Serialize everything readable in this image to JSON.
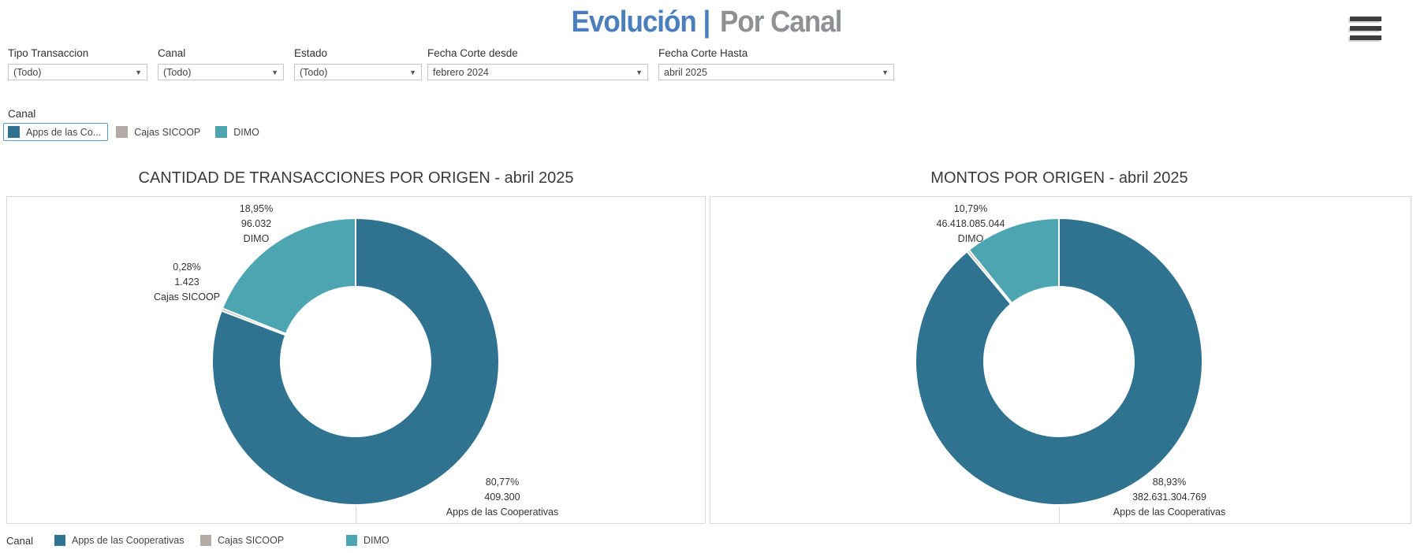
{
  "header": {
    "title_primary": "Evolución |",
    "title_secondary": "Por Canal",
    "menu_icon": "hamburger-icon"
  },
  "filters": [
    {
      "label": "Tipo Transaccion",
      "value": "(Todo)"
    },
    {
      "label": "Canal",
      "value": "(Todo)"
    },
    {
      "label": "Estado",
      "value": "(Todo)"
    },
    {
      "label": "Fecha Corte desde",
      "value": "febrero 2024"
    },
    {
      "label": "Fecha Corte Hasta",
      "value": "abril 2025"
    }
  ],
  "quick_legend": {
    "title": "Canal",
    "items": [
      {
        "label": "Apps de las Co...",
        "color": "#2f7391",
        "selected": true
      },
      {
        "label": "Cajas SICOOP",
        "color": "#b4aba6",
        "selected": false
      },
      {
        "label": "DIMO",
        "color": "#4ea5b2",
        "selected": false
      }
    ]
  },
  "chart_data": [
    {
      "type": "pie",
      "subtype": "donut",
      "title": "CANTIDAD DE TRANSACCIONES POR ORIGEN - abril 2025",
      "legend_title": "Canal",
      "start_angle": "12-oclock",
      "direction": "clockwise",
      "segments": [
        {
          "label": "Apps de las Cooperativas",
          "percent": 80.77,
          "percent_label": "80,77%",
          "value": 409300,
          "value_label": "409.300",
          "color": "#2f7391"
        },
        {
          "label": "Cajas SICOOP",
          "percent": 0.28,
          "percent_label": "0,28%",
          "value": 1423,
          "value_label": "1.423",
          "color": "#b4aba6"
        },
        {
          "label": "DIMO",
          "percent": 18.95,
          "percent_label": "18,95%",
          "value": 96032,
          "value_label": "96.032",
          "color": "#4ea5b2"
        }
      ]
    },
    {
      "type": "pie",
      "subtype": "donut",
      "title": "MONTOS POR ORIGEN -  abril 2025",
      "legend_title": "Canal",
      "start_angle": "12-oclock",
      "direction": "clockwise",
      "segments": [
        {
          "label": "Apps de las Cooperativas",
          "percent": 88.93,
          "percent_label": "88,93%",
          "value": 382631304769,
          "value_label": "382.631.304.769",
          "color": "#2f7391"
        },
        {
          "label": "Cajas SICOOP",
          "percent": 0.28,
          "color": "#b4aba6"
        },
        {
          "label": "DIMO",
          "percent": 10.79,
          "percent_label": "10,79%",
          "value": 46418085044,
          "value_label": "46.418.085.044",
          "color": "#4ea5b2"
        }
      ]
    }
  ],
  "bottom_legend": {
    "title": "Canal",
    "items": [
      {
        "label": "Apps de las Cooperativas",
        "color": "#2f7391"
      },
      {
        "label": "Cajas SICOOP",
        "color": "#b4aba6"
      },
      {
        "label": "DIMO",
        "color": "#4ea5b2"
      }
    ]
  }
}
